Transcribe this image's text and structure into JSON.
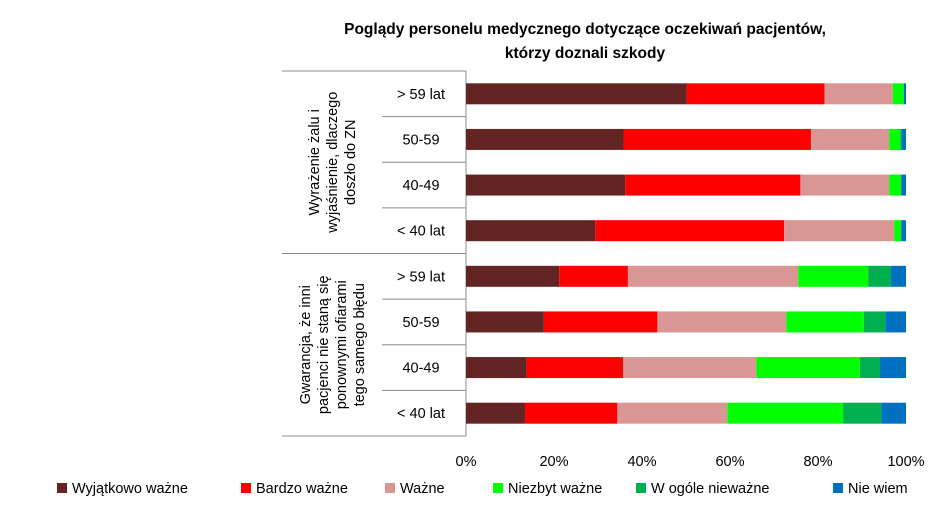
{
  "chart_data": {
    "type": "bar",
    "orientation": "horizontal",
    "stacked": "percent",
    "title": "Poglądy personelu medycznego dotyczące oczekiwań pacjentów, którzy doznali szkody",
    "title_lines": [
      "Poglądy personelu medycznego dotyczące oczekiwań pacjentów,",
      "którzy doznali szkody"
    ],
    "groups": [
      {
        "label": "Wyrażenie żalu i wyjaśnienie, dlaczego doszło do ZN",
        "label_lines": [
          "Wyrażenie żalu i",
          "wyjaśnienie, dlaczego",
          "doszło do ZN"
        ],
        "categories": [
          "> 59 lat",
          "50-59",
          "40-49",
          "< 40 lat"
        ]
      },
      {
        "label": "Gwarancja, że inni pacjenci nie staną się ponownymi ofiarami tego samego błędu",
        "label_lines": [
          "Gwarancja, że inni",
          "pacjenci nie staną się",
          "ponownymi ofiarami",
          "tego samego błędu"
        ],
        "categories": [
          "> 59 lat",
          "50-59",
          "40-49",
          "< 40 lat"
        ]
      }
    ],
    "series": [
      {
        "name": "Wyjątkowo ważne",
        "color": "#632523",
        "values": [
          50.2,
          35.8,
          36.2,
          29.4,
          21.2,
          17.7,
          13.8,
          13.4
        ]
      },
      {
        "name": "Bardzo ważne",
        "color": "#ff0000",
        "values": [
          31.3,
          42.6,
          39.8,
          42.9,
          15.6,
          25.8,
          21.9,
          21.0
        ]
      },
      {
        "name": "Ważne",
        "color": "#d99694",
        "values": [
          15.5,
          17.8,
          20.2,
          25.0,
          38.7,
          29.3,
          30.3,
          25.0
        ]
      },
      {
        "name": "Niezbyt ważne",
        "color": "#00ff00",
        "values": [
          2.5,
          2.5,
          2.6,
          1.5,
          15.9,
          17.6,
          23.5,
          26.3
        ]
      },
      {
        "name": "W ogóle nieważne",
        "color": "#00b050",
        "values": [
          0.0,
          0.3,
          0.2,
          0.2,
          5.2,
          4.9,
          4.6,
          8.7
        ]
      },
      {
        "name": "Nie wiem",
        "color": "#0070c0",
        "values": [
          0.5,
          1.0,
          1.0,
          1.0,
          3.4,
          4.7,
          5.9,
          5.6
        ]
      }
    ],
    "xlim": [
      0,
      100
    ],
    "xticks": [
      "0%",
      "20%",
      "40%",
      "60%",
      "80%",
      "100%"
    ],
    "grid": false,
    "legend_position": "bottom"
  }
}
